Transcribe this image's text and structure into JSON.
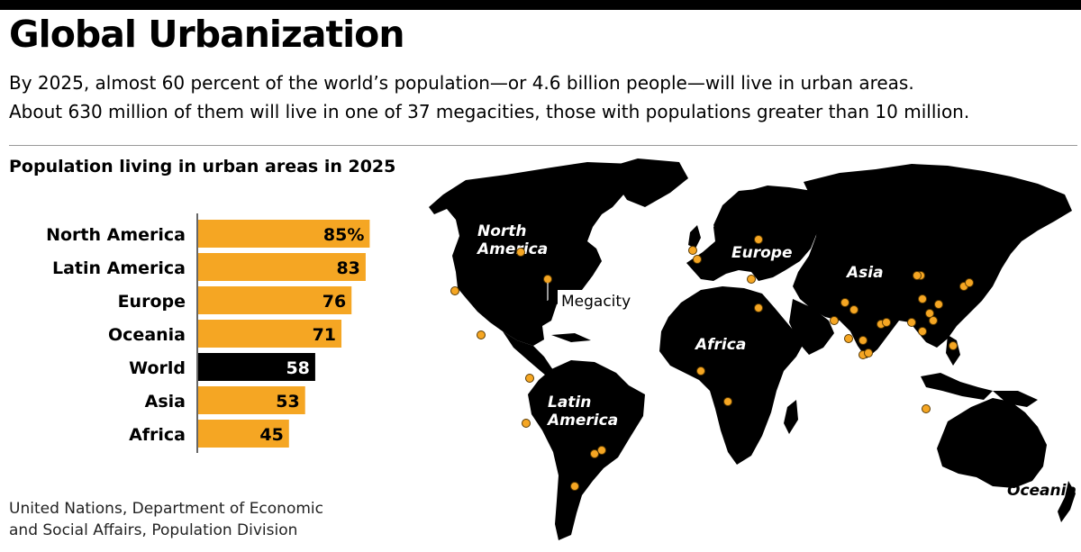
{
  "title": "Global Urbanization",
  "subtitle_line1": "By 2025, almost 60 percent of the world’s population—or 4.6 billion people—will live in urban areas.",
  "subtitle_line2": "About 630 million of them will live in one of 37 megacities, those with populations greater than 10 million.",
  "chart_title": "Population living in urban areas in 2025",
  "source_line1": "United Nations, Department of Economic",
  "source_line2": "and Social Affairs, Population Division",
  "colors": {
    "accent": "#f5a623",
    "world": "#000000",
    "land": "#000000",
    "dot_edge": "#5a3a00"
  },
  "chart_data": {
    "type": "bar",
    "orientation": "horizontal",
    "categories": [
      "North America",
      "Latin America",
      "Europe",
      "Oceania",
      "World",
      "Asia",
      "Africa"
    ],
    "values": [
      85,
      83,
      76,
      71,
      58,
      53,
      45
    ],
    "value_labels": [
      "85%",
      "83",
      "76",
      "71",
      "58",
      "53",
      "45"
    ],
    "highlight": "World",
    "xlim": [
      0,
      100
    ],
    "title": "Population living in urban areas in 2025"
  },
  "map": {
    "region_labels": [
      {
        "line1": "North",
        "line2": "America"
      },
      {
        "line1": "Latin",
        "line2": "America"
      },
      {
        "line1": "Europe",
        "line2": ""
      },
      {
        "line1": "Africa",
        "line2": ""
      },
      {
        "line1": "Asia",
        "line2": ""
      },
      {
        "line1": "Oceania",
        "line2": ""
      }
    ],
    "megacity_label": "Megacity",
    "megacity_count": 37
  }
}
